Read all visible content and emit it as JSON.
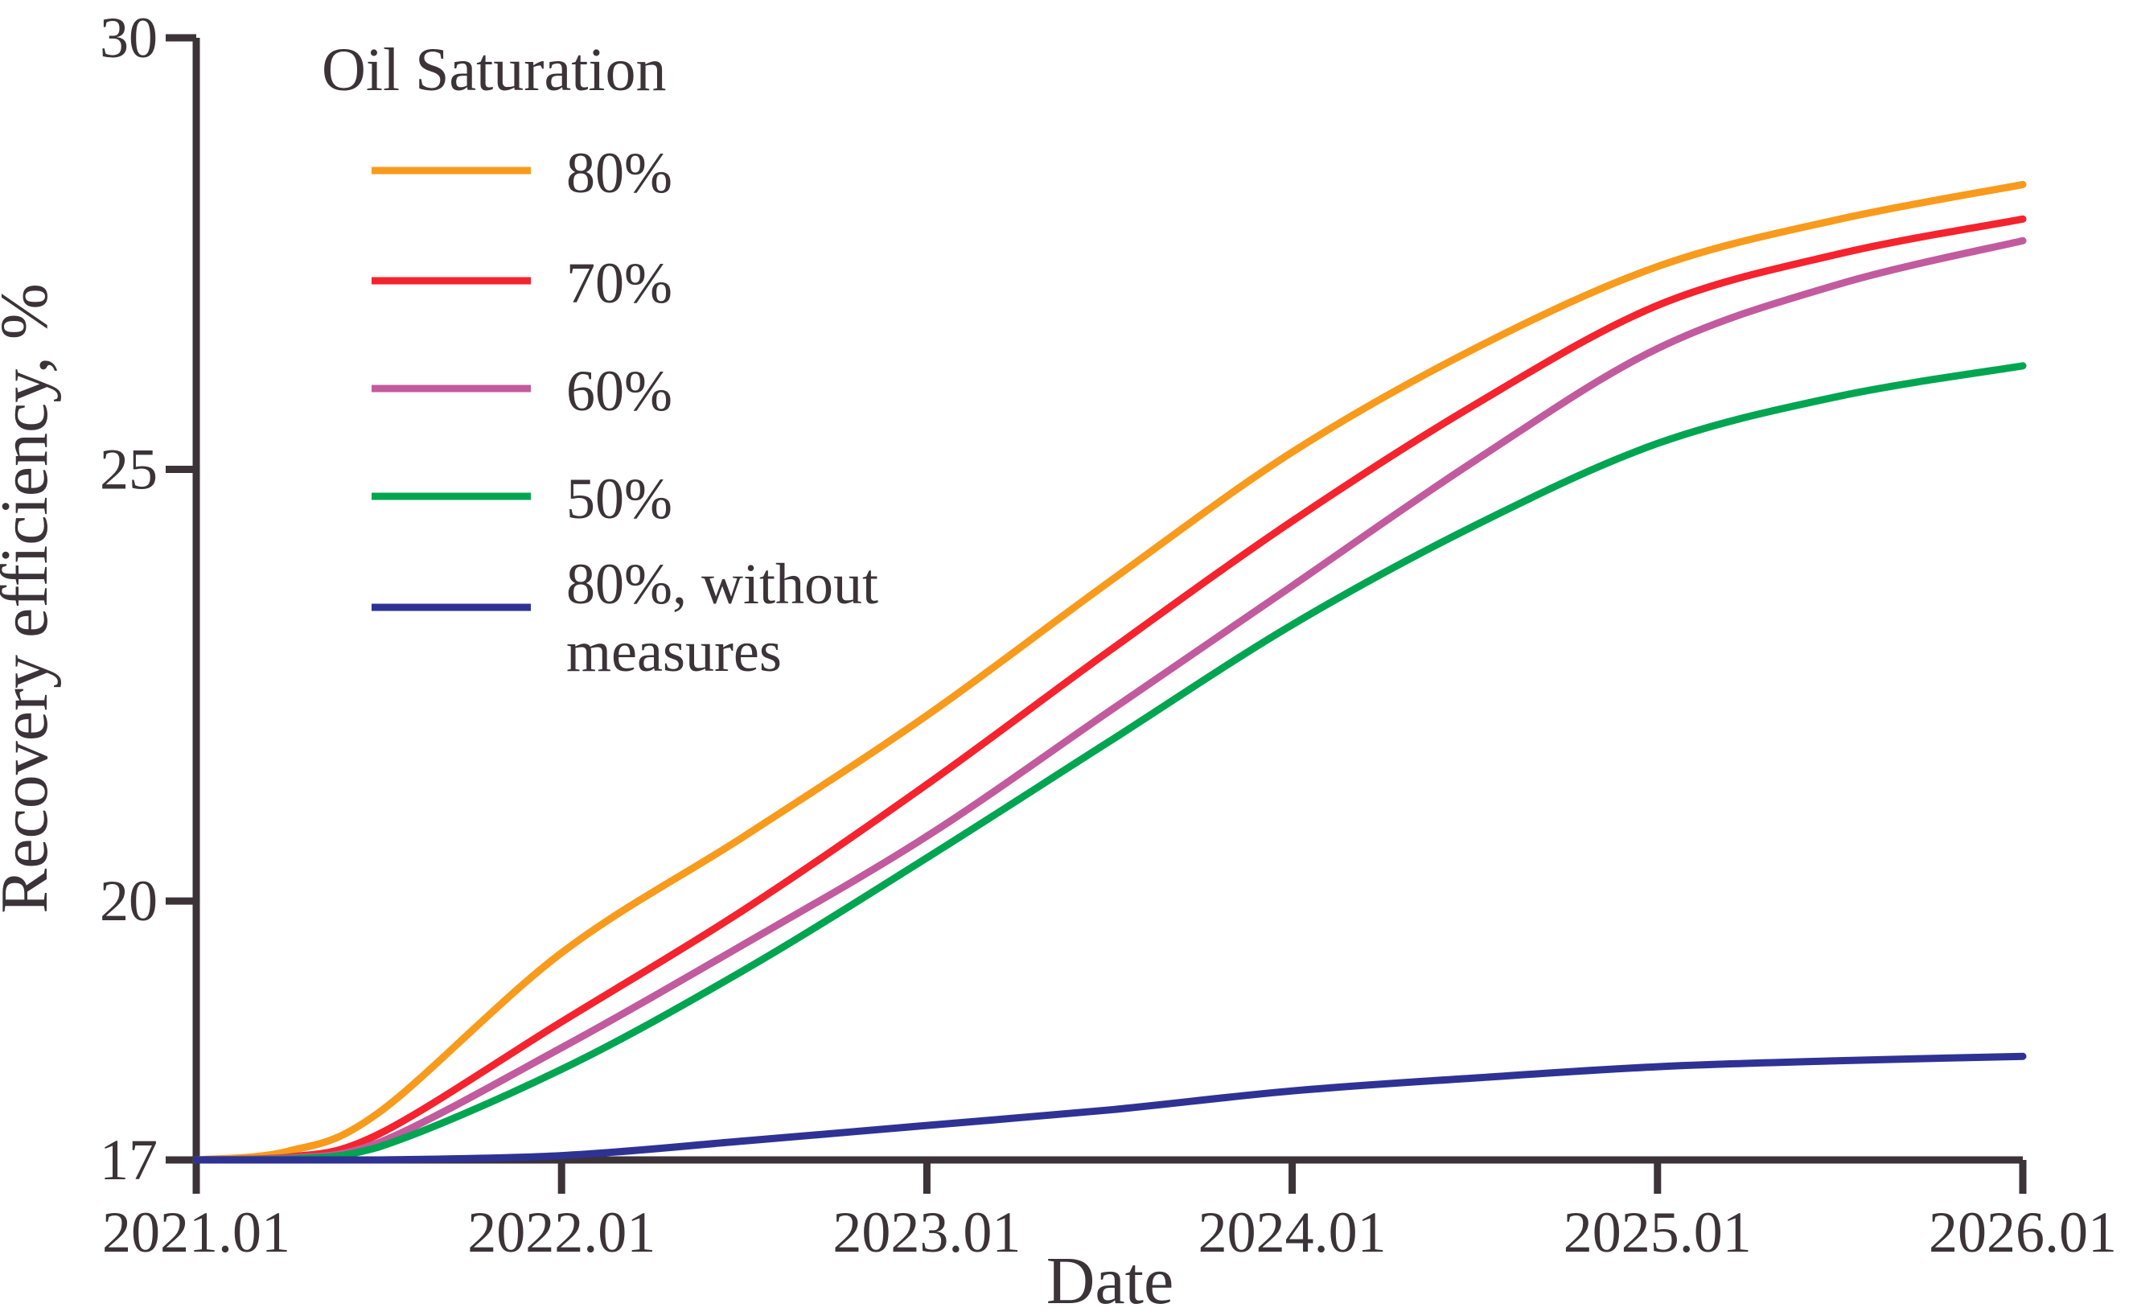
{
  "page": {
    "background": "#FFFFFF"
  },
  "style": {
    "text_color": "#3B3337",
    "axis_color": "#3B3337",
    "background": "#FFFFFF"
  },
  "legend": {
    "title": "Oil Saturation",
    "position": "upper-left",
    "items": [
      {
        "label": "80%",
        "label_lines": [
          "80%"
        ],
        "color": "#F89B1C"
      },
      {
        "label": "70%",
        "label_lines": [
          "70%"
        ],
        "color": "#F5232E"
      },
      {
        "label": "60%",
        "label_lines": [
          "60%"
        ],
        "color": "#C25B9E"
      },
      {
        "label": "50%",
        "label_lines": [
          "50%"
        ],
        "color": "#00A551"
      },
      {
        "label": "80%, without measures",
        "label_lines": [
          "80%, without",
          "measures"
        ],
        "color": "#2F3293"
      }
    ]
  },
  "chart_data": {
    "type": "line",
    "title": "",
    "legend_title": "Oil Saturation",
    "xlabel": "Date",
    "ylabel": "Recovery efficiency, %",
    "xlim": [
      2021,
      2026
    ],
    "ylim": [
      17,
      30
    ],
    "grid": false,
    "legend_position": "upper-left",
    "x_tick_labels": [
      "2021.01",
      "2022.01",
      "2023.01",
      "2024.01",
      "2025.01",
      "2026.01"
    ],
    "x_tick_values": [
      2021,
      2022,
      2023,
      2024,
      2025,
      2026
    ],
    "y_tick_labels": [
      "30",
      "25",
      "20",
      "17"
    ],
    "y_tick_values": [
      30,
      25,
      20,
      17
    ],
    "x": [
      2021,
      2021.25,
      2021.5,
      2022,
      2022.5,
      2023,
      2023.5,
      2024,
      2024.5,
      2025,
      2025.5,
      2026
    ],
    "series": [
      {
        "name": "80%",
        "color": "#F89B1C",
        "values": [
          17.0,
          17.1,
          17.55,
          19.4,
          20.75,
          22.15,
          23.7,
          25.2,
          26.4,
          27.35,
          27.9,
          28.3
        ]
      },
      {
        "name": "70%",
        "color": "#F5232E",
        "values": [
          17.0,
          17.03,
          17.3,
          18.6,
          19.9,
          21.35,
          22.9,
          24.4,
          25.75,
          26.9,
          27.5,
          27.9
        ]
      },
      {
        "name": "60%",
        "color": "#C25B9E",
        "values": [
          17.0,
          17.02,
          17.2,
          18.3,
          19.5,
          20.75,
          22.2,
          23.65,
          25.1,
          26.4,
          27.15,
          27.65
        ]
      },
      {
        "name": "50%",
        "color": "#00A551",
        "values": [
          17.0,
          17.01,
          17.15,
          18.05,
          19.2,
          20.5,
          21.85,
          23.2,
          24.35,
          25.3,
          25.85,
          26.2
        ]
      },
      {
        "name": "80%, without measures",
        "color": "#2F3293",
        "values": [
          17.0,
          17.0,
          17.0,
          17.05,
          17.22,
          17.4,
          17.58,
          17.8,
          17.95,
          18.08,
          18.15,
          18.2
        ]
      }
    ]
  }
}
